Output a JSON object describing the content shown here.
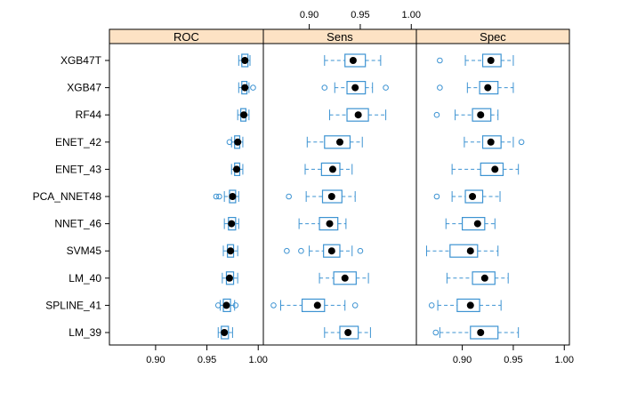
{
  "chart_data": {
    "type": "boxplot",
    "title": "",
    "xlabel": "",
    "ylabel": "",
    "models": [
      "XGB47T",
      "XGB47",
      "RF44",
      "ENET_42",
      "ENET_43",
      "PCA_NNET48",
      "NNET_46",
      "SVM45",
      "LM_40",
      "SPLINE_41",
      "LM_39"
    ],
    "panels": [
      {
        "name": "ROC",
        "xlim": [
          0.855,
          1.005
        ],
        "ticks": [
          0.9,
          0.95,
          1.0
        ],
        "tick_labels": [
          "0.90",
          "0.95",
          "1.00"
        ],
        "tick_side": "bottom",
        "boxes": [
          {
            "whisker_low": 0.981,
            "q1": 0.984,
            "median": 0.987,
            "q3": 0.99,
            "whisker_high": 0.992,
            "outliers": []
          },
          {
            "whisker_low": 0.981,
            "q1": 0.984,
            "median": 0.987,
            "q3": 0.989,
            "whisker_high": 0.991,
            "outliers": [
              0.995
            ]
          },
          {
            "whisker_low": 0.98,
            "q1": 0.983,
            "median": 0.986,
            "q3": 0.988,
            "whisker_high": 0.991,
            "outliers": []
          },
          {
            "whisker_low": 0.974,
            "q1": 0.977,
            "median": 0.98,
            "q3": 0.982,
            "whisker_high": 0.985,
            "outliers": [
              0.972
            ]
          },
          {
            "whisker_low": 0.974,
            "q1": 0.977,
            "median": 0.979,
            "q3": 0.982,
            "whisker_high": 0.985,
            "outliers": []
          },
          {
            "whisker_low": 0.967,
            "q1": 0.972,
            "median": 0.975,
            "q3": 0.978,
            "whisker_high": 0.981,
            "outliers": [
              0.959,
              0.962
            ]
          },
          {
            "whisker_low": 0.967,
            "q1": 0.971,
            "median": 0.974,
            "q3": 0.978,
            "whisker_high": 0.981,
            "outliers": []
          },
          {
            "whisker_low": 0.966,
            "q1": 0.97,
            "median": 0.973,
            "q3": 0.976,
            "whisker_high": 0.98,
            "outliers": []
          },
          {
            "whisker_low": 0.965,
            "q1": 0.969,
            "median": 0.972,
            "q3": 0.976,
            "whisker_high": 0.98,
            "outliers": []
          },
          {
            "whisker_low": 0.963,
            "q1": 0.966,
            "median": 0.969,
            "q3": 0.973,
            "whisker_high": 0.977,
            "outliers": [
              0.961,
              0.978
            ]
          },
          {
            "whisker_low": 0.961,
            "q1": 0.964,
            "median": 0.967,
            "q3": 0.971,
            "whisker_high": 0.975,
            "outliers": []
          }
        ]
      },
      {
        "name": "Sens",
        "xlim": [
          0.855,
          1.005
        ],
        "ticks": [
          0.9,
          0.95,
          1.0
        ],
        "tick_labels": [
          "0.90",
          "0.95",
          "1.00"
        ],
        "tick_side": "top",
        "boxes": [
          {
            "whisker_low": 0.915,
            "q1": 0.935,
            "median": 0.943,
            "q3": 0.955,
            "whisker_high": 0.97,
            "outliers": []
          },
          {
            "whisker_low": 0.925,
            "q1": 0.937,
            "median": 0.945,
            "q3": 0.955,
            "whisker_high": 0.962,
            "outliers": [
              0.915,
              0.975
            ]
          },
          {
            "whisker_low": 0.92,
            "q1": 0.937,
            "median": 0.948,
            "q3": 0.958,
            "whisker_high": 0.975,
            "outliers": []
          },
          {
            "whisker_low": 0.898,
            "q1": 0.915,
            "median": 0.93,
            "q3": 0.94,
            "whisker_high": 0.952,
            "outliers": []
          },
          {
            "whisker_low": 0.896,
            "q1": 0.912,
            "median": 0.923,
            "q3": 0.93,
            "whisker_high": 0.942,
            "outliers": []
          },
          {
            "whisker_low": 0.897,
            "q1": 0.913,
            "median": 0.922,
            "q3": 0.932,
            "whisker_high": 0.945,
            "outliers": [
              0.88
            ]
          },
          {
            "whisker_low": 0.89,
            "q1": 0.91,
            "median": 0.92,
            "q3": 0.928,
            "whisker_high": 0.936,
            "outliers": []
          },
          {
            "whisker_low": 0.9,
            "q1": 0.914,
            "median": 0.922,
            "q3": 0.93,
            "whisker_high": 0.942,
            "outliers": [
              0.878,
              0.892,
              0.95
            ]
          },
          {
            "whisker_low": 0.91,
            "q1": 0.924,
            "median": 0.935,
            "q3": 0.946,
            "whisker_high": 0.958,
            "outliers": []
          },
          {
            "whisker_low": 0.872,
            "q1": 0.893,
            "median": 0.908,
            "q3": 0.915,
            "whisker_high": 0.935,
            "outliers": [
              0.865,
              0.945
            ]
          },
          {
            "whisker_low": 0.915,
            "q1": 0.93,
            "median": 0.938,
            "q3": 0.948,
            "whisker_high": 0.96,
            "outliers": []
          }
        ]
      },
      {
        "name": "Spec",
        "xlim": [
          0.855,
          1.005
        ],
        "ticks": [
          0.9,
          0.95,
          1.0
        ],
        "tick_labels": [
          "0.90",
          "0.95",
          "1.00"
        ],
        "tick_side": "bottom",
        "boxes": [
          {
            "whisker_low": 0.903,
            "q1": 0.92,
            "median": 0.928,
            "q3": 0.938,
            "whisker_high": 0.95,
            "outliers": [
              0.878
            ]
          },
          {
            "whisker_low": 0.905,
            "q1": 0.917,
            "median": 0.925,
            "q3": 0.935,
            "whisker_high": 0.95,
            "outliers": [
              0.878
            ]
          },
          {
            "whisker_low": 0.893,
            "q1": 0.91,
            "median": 0.918,
            "q3": 0.928,
            "whisker_high": 0.935,
            "outliers": [
              0.875
            ]
          },
          {
            "whisker_low": 0.902,
            "q1": 0.92,
            "median": 0.928,
            "q3": 0.938,
            "whisker_high": 0.95,
            "outliers": [
              0.958
            ]
          },
          {
            "whisker_low": 0.89,
            "q1": 0.918,
            "median": 0.932,
            "q3": 0.94,
            "whisker_high": 0.955,
            "outliers": []
          },
          {
            "whisker_low": 0.89,
            "q1": 0.903,
            "median": 0.91,
            "q3": 0.92,
            "whisker_high": 0.937,
            "outliers": [
              0.875
            ]
          },
          {
            "whisker_low": 0.884,
            "q1": 0.9,
            "median": 0.915,
            "q3": 0.922,
            "whisker_high": 0.932,
            "outliers": []
          },
          {
            "whisker_low": 0.865,
            "q1": 0.888,
            "median": 0.908,
            "q3": 0.915,
            "whisker_high": 0.935,
            "outliers": []
          },
          {
            "whisker_low": 0.885,
            "q1": 0.91,
            "median": 0.922,
            "q3": 0.932,
            "whisker_high": 0.945,
            "outliers": []
          },
          {
            "whisker_low": 0.876,
            "q1": 0.895,
            "median": 0.908,
            "q3": 0.917,
            "whisker_high": 0.938,
            "outliers": [
              0.87
            ]
          },
          {
            "whisker_low": 0.878,
            "q1": 0.908,
            "median": 0.918,
            "q3": 0.935,
            "whisker_high": 0.955,
            "outliers": [
              0.874
            ]
          }
        ]
      }
    ],
    "colors": {
      "box": "#3d93d2",
      "median": "#000000",
      "strip_fill": "#fde2c4",
      "frame": "#000000"
    }
  }
}
